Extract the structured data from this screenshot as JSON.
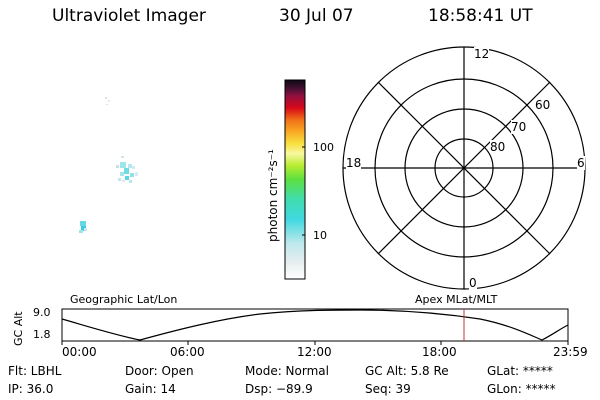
{
  "header": {
    "instrument": "Ultraviolet Imager",
    "date": "30 Jul 07",
    "time": "18:58:41 UT"
  },
  "colorbar": {
    "label": "photon cm⁻²s⁻¹",
    "ticks": [
      "100",
      "10"
    ]
  },
  "polar_grid": {
    "mlt_labels": {
      "top": "12",
      "left": "18",
      "right": "6",
      "bottom": "0"
    },
    "lat_labels": [
      "60",
      "70",
      "80"
    ]
  },
  "orbit_panel": {
    "ylabel": "GC Alt",
    "yticks": [
      "9.0",
      "1.8"
    ],
    "left_title": "Geographic Lat/Lon",
    "right_title": "Apex MLat/MLT",
    "xticks": [
      "00:00",
      "06:00",
      "12:00",
      "18:00",
      "23:59"
    ],
    "marker_color": "#c83232"
  },
  "status": {
    "filter": "Flt: LBHL",
    "door": "Door: Open",
    "mode": "Mode: Normal",
    "gc_alt": "GC Alt: 5.8 Re",
    "glat": "GLat: *****",
    "ip": "IP: 36.0",
    "gain": "Gain: 14",
    "dsp": "Dsp:  −89.9",
    "seq": "Seq: 39",
    "glon": "GLon: *****"
  }
}
